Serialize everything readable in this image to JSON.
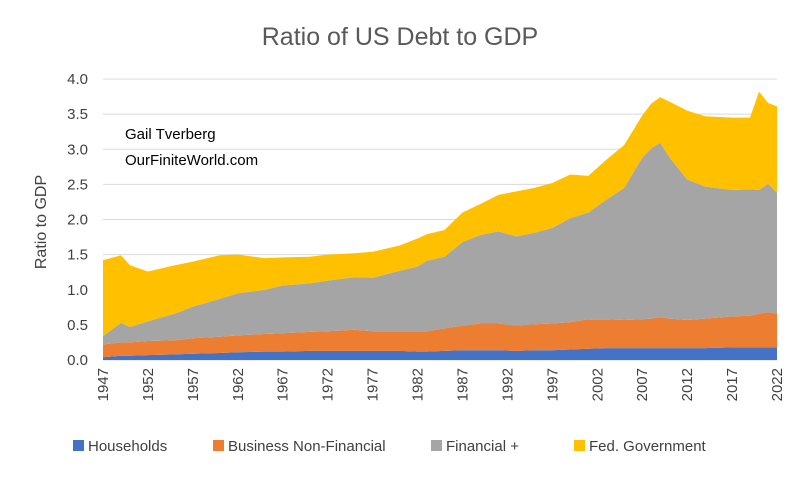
{
  "chart_data": {
    "type": "area",
    "stacked": true,
    "title": "Ratio of US Debt to GDP",
    "xlabel": "",
    "ylabel": "Ratio to GDP",
    "annotations": [
      "Gail Tverberg",
      "OurFiniteWorld.com"
    ],
    "ylim": [
      0,
      4.0
    ],
    "yticks": [
      "0.0",
      "0.5",
      "1.0",
      "1.5",
      "2.0",
      "2.5",
      "3.0",
      "3.5",
      "4.0"
    ],
    "xlim": [
      1947,
      2022
    ],
    "xticks": [
      "1947",
      "1952",
      "1957",
      "1962",
      "1967",
      "1972",
      "1977",
      "1982",
      "1987",
      "1992",
      "1997",
      "2002",
      "2007",
      "2012",
      "2017",
      "2022"
    ],
    "grid": true,
    "legend_position": "bottom",
    "x": [
      1947,
      1949,
      1950,
      1952,
      1955,
      1957,
      1960,
      1962,
      1965,
      1967,
      1970,
      1972,
      1975,
      1977,
      1980,
      1982,
      1983,
      1985,
      1987,
      1989,
      1991,
      1993,
      1995,
      1997,
      1999,
      2001,
      2003,
      2005,
      2007,
      2008,
      2009,
      2010,
      2012,
      2014,
      2017,
      2019,
      2020,
      2021,
      2022
    ],
    "series": [
      {
        "name": "Households",
        "color": "#4472c4",
        "values": [
          0.04,
          0.06,
          0.06,
          0.07,
          0.08,
          0.09,
          0.1,
          0.11,
          0.12,
          0.12,
          0.13,
          0.13,
          0.13,
          0.13,
          0.13,
          0.12,
          0.12,
          0.13,
          0.14,
          0.14,
          0.14,
          0.13,
          0.14,
          0.14,
          0.15,
          0.16,
          0.17,
          0.17,
          0.17,
          0.17,
          0.17,
          0.17,
          0.17,
          0.17,
          0.18,
          0.18,
          0.18,
          0.18,
          0.18
        ]
      },
      {
        "name": "Business Non-Financial",
        "color": "#ed7d31",
        "values": [
          0.18,
          0.19,
          0.19,
          0.2,
          0.2,
          0.22,
          0.23,
          0.24,
          0.25,
          0.26,
          0.27,
          0.28,
          0.3,
          0.28,
          0.28,
          0.29,
          0.29,
          0.32,
          0.35,
          0.38,
          0.38,
          0.36,
          0.37,
          0.38,
          0.39,
          0.42,
          0.41,
          0.4,
          0.41,
          0.42,
          0.44,
          0.42,
          0.4,
          0.42,
          0.44,
          0.45,
          0.48,
          0.5,
          0.48
        ]
      },
      {
        "name": "Financial +",
        "color": "#a5a5a5",
        "values": [
          0.12,
          0.28,
          0.22,
          0.28,
          0.38,
          0.45,
          0.54,
          0.6,
          0.63,
          0.68,
          0.69,
          0.72,
          0.75,
          0.76,
          0.86,
          0.92,
          1.0,
          1.02,
          1.19,
          1.26,
          1.31,
          1.27,
          1.3,
          1.36,
          1.48,
          1.52,
          1.7,
          1.88,
          2.3,
          2.42,
          2.48,
          2.3,
          2.0,
          1.88,
          1.8,
          1.8,
          1.76,
          1.83,
          1.72
        ]
      },
      {
        "name": "Fed. Government",
        "color": "#ffc000",
        "values": [
          1.08,
          0.96,
          0.88,
          0.71,
          0.69,
          0.64,
          0.62,
          0.55,
          0.45,
          0.4,
          0.38,
          0.37,
          0.34,
          0.37,
          0.36,
          0.4,
          0.38,
          0.38,
          0.42,
          0.44,
          0.52,
          0.64,
          0.64,
          0.64,
          0.62,
          0.52,
          0.57,
          0.61,
          0.6,
          0.64,
          0.65,
          0.79,
          0.98,
          1.0,
          1.03,
          1.02,
          1.4,
          1.15,
          1.23
        ]
      }
    ]
  }
}
